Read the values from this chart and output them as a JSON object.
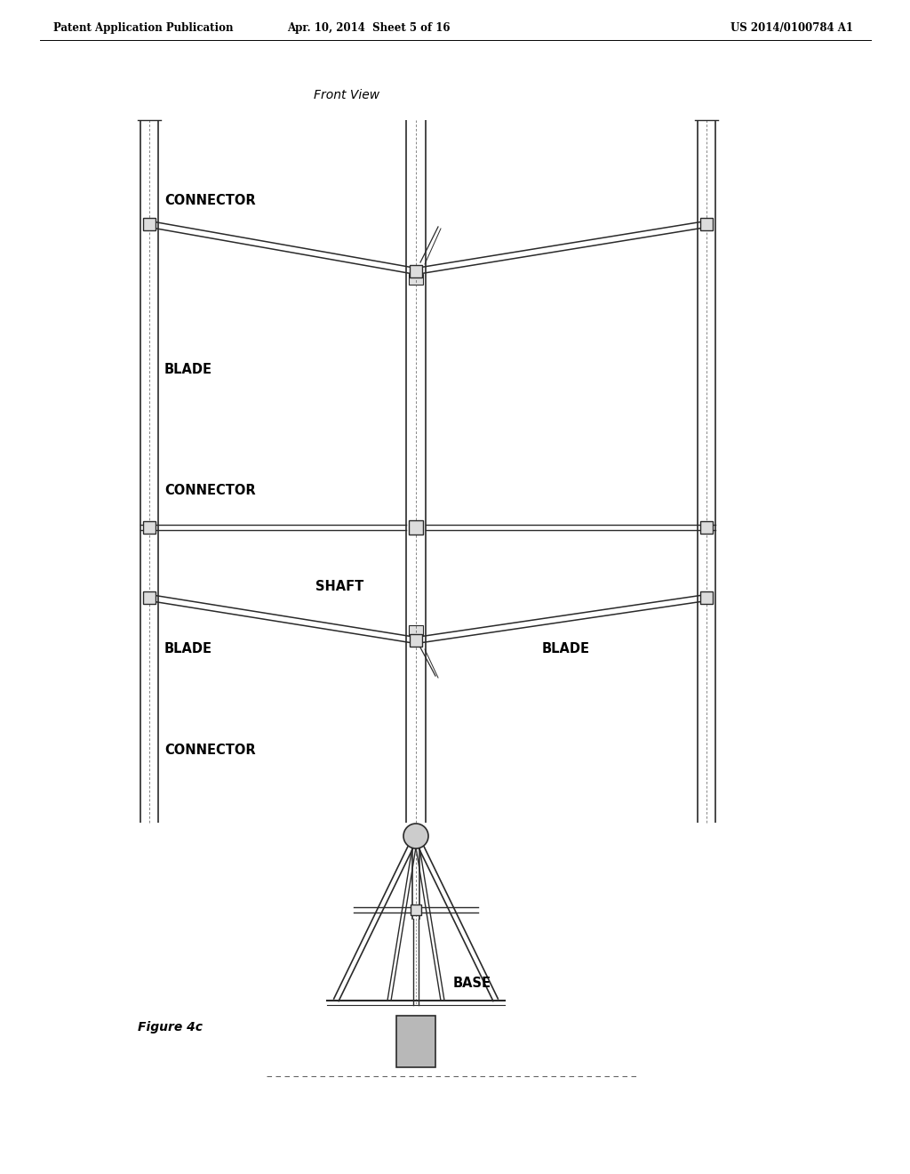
{
  "bg_color": "#ffffff",
  "header_left": "Patent Application Publication",
  "header_mid": "Apr. 10, 2014  Sheet 5 of 16",
  "header_right": "US 2014/0100784 A1",
  "title": "Front View",
  "figure_label": "Figure 4c",
  "labels": {
    "connector_top": "CONNECTOR",
    "blade_upper_left": "BLADE",
    "connector_mid": "CONNECTOR",
    "shaft": "SHAFT",
    "blade_lower_left": "BLADE",
    "blade_lower_right": "BLADE",
    "connector_bottom": "CONNECTOR",
    "base": "BASE"
  },
  "lc": "#2a2a2a",
  "dc": "#555555"
}
